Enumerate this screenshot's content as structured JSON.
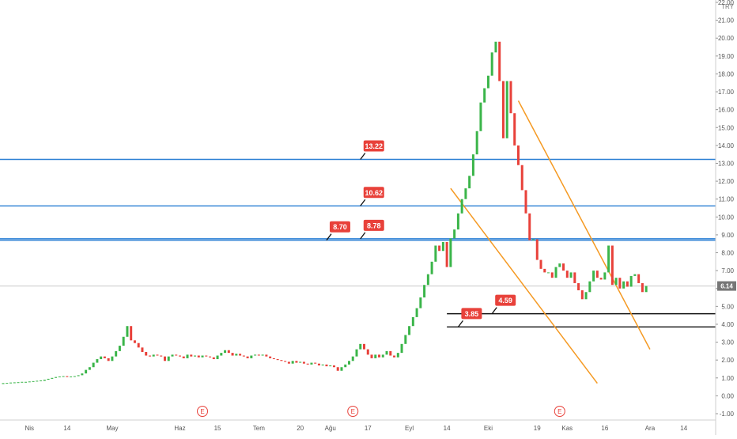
{
  "chart_data": {
    "type": "candlestick",
    "currency": "TRY",
    "y_axis": {
      "min": -1.0,
      "max": 22.0,
      "ticks": [
        "22.00",
        "21.00",
        "20.00",
        "19.00",
        "18.00",
        "17.00",
        "16.00",
        "15.00",
        "14.00",
        "13.00",
        "12.00",
        "11.00",
        "10.00",
        "9.00",
        "8.00",
        "7.00",
        "6.00",
        "5.00",
        "4.00",
        "3.00",
        "2.00",
        "1.00",
        "0.00",
        "-1.00"
      ],
      "tick_values": [
        22,
        21,
        20,
        19,
        18,
        17,
        16,
        15,
        14,
        13,
        12,
        11,
        10,
        9,
        8,
        7,
        6,
        5,
        4,
        3,
        2,
        1,
        0,
        -1
      ],
      "grid": false
    },
    "x_axis": {
      "labels": [
        {
          "text": "Nis",
          "d": 0
        },
        {
          "text": "14",
          "d": 10
        },
        {
          "text": "May",
          "d": 22
        },
        {
          "text": "Haz",
          "d": 40
        },
        {
          "text": "15",
          "d": 50
        },
        {
          "text": "Tem",
          "d": 61
        },
        {
          "text": "20",
          "d": 72
        },
        {
          "text": "Ağu",
          "d": 80
        },
        {
          "text": "17",
          "d": 90
        },
        {
          "text": "Eyl",
          "d": 101
        },
        {
          "text": "14",
          "d": 111
        },
        {
          "text": "Eki",
          "d": 122
        },
        {
          "text": "19",
          "d": 135
        },
        {
          "text": "Kas",
          "d": 143
        },
        {
          "text": "16",
          "d": 153
        },
        {
          "text": "Ara",
          "d": 165
        },
        {
          "text": "14",
          "d": 174
        }
      ],
      "range": [
        -7,
        181
      ]
    },
    "current_price": {
      "value": 6.14,
      "label": "6.14"
    },
    "markers": [
      {
        "text": "E",
        "d": 46
      },
      {
        "text": "E",
        "d": 86
      },
      {
        "text": "E",
        "d": 141
      }
    ],
    "horizontal_lines": [
      {
        "value": 13.22,
        "color": "#2a7fd4",
        "label": "13.22",
        "label_d": 88
      },
      {
        "value": 10.62,
        "color": "#2a7fd4",
        "label": "10.62",
        "label_d": 88
      },
      {
        "value": 8.7,
        "color": "#2a7fd4",
        "label": "8.70",
        "label_d": 79
      },
      {
        "value": 8.78,
        "color": "#2a7fd4",
        "label": "8.78",
        "label_d": 88
      },
      {
        "value": 4.59,
        "color": "#111111",
        "label": "4.59",
        "label_d": 123,
        "start_d": 111
      },
      {
        "value": 3.85,
        "color": "#111111",
        "label": "3.85",
        "label_d": 114,
        "start_d": 111
      }
    ],
    "trend_lines": [
      {
        "color": "#f59a23",
        "from": {
          "d": 112,
          "v": 11.6
        },
        "to": {
          "d": 151,
          "v": 0.7
        }
      },
      {
        "color": "#f59a23",
        "from": {
          "d": 130,
          "v": 16.5
        },
        "to": {
          "d": 165,
          "v": 2.6
        }
      }
    ],
    "candles": [
      [
        -7,
        0.66,
        0.71
      ],
      [
        -6,
        0.68,
        0.72
      ],
      [
        -5,
        0.7,
        0.74
      ],
      [
        -4,
        0.72,
        0.75
      ],
      [
        -3,
        0.72,
        0.76
      ],
      [
        -2,
        0.74,
        0.78
      ],
      [
        -1,
        0.75,
        0.78
      ],
      [
        0,
        0.76,
        0.8
      ],
      [
        1,
        0.78,
        0.82
      ],
      [
        2,
        0.8,
        0.84
      ],
      [
        3,
        0.82,
        0.86
      ],
      [
        4,
        0.84,
        0.9
      ],
      [
        5,
        0.9,
        0.95
      ],
      [
        6,
        0.95,
        1.0
      ],
      [
        7,
        1.0,
        1.05
      ],
      [
        8,
        1.05,
        1.08
      ],
      [
        9,
        1.08,
        1.1
      ],
      [
        10,
        1.1,
        1.05
      ],
      [
        11,
        1.05,
        1.08
      ],
      [
        12,
        1.08,
        1.1
      ],
      [
        13,
        1.1,
        1.15
      ],
      [
        14,
        1.15,
        1.25
      ],
      [
        15,
        1.25,
        1.45
      ],
      [
        16,
        1.45,
        1.6
      ],
      [
        17,
        1.6,
        1.85
      ],
      [
        18,
        1.85,
        2.05
      ],
      [
        19,
        2.05,
        2.2
      ],
      [
        20,
        2.2,
        2.1
      ],
      [
        21,
        2.1,
        1.95
      ],
      [
        22,
        1.95,
        2.2
      ],
      [
        23,
        2.2,
        2.5
      ],
      [
        24,
        2.5,
        2.8
      ],
      [
        25,
        2.8,
        3.3
      ],
      [
        26,
        3.3,
        3.9
      ],
      [
        27,
        3.9,
        3.1
      ],
      [
        28,
        3.1,
        2.95
      ],
      [
        29,
        2.95,
        2.7
      ],
      [
        30,
        2.7,
        2.45
      ],
      [
        31,
        2.45,
        2.25
      ],
      [
        32,
        2.25,
        2.2
      ],
      [
        33,
        2.2,
        2.3
      ],
      [
        34,
        2.3,
        2.25
      ],
      [
        35,
        2.25,
        2.2
      ],
      [
        36,
        2.2,
        1.95
      ],
      [
        37,
        1.95,
        2.2
      ],
      [
        38,
        2.2,
        2.3
      ],
      [
        39,
        2.3,
        2.25
      ],
      [
        40,
        2.25,
        2.2
      ],
      [
        41,
        2.2,
        2.1
      ],
      [
        42,
        2.1,
        2.3
      ],
      [
        43,
        2.3,
        2.2
      ],
      [
        44,
        2.2,
        2.25
      ],
      [
        45,
        2.25,
        2.15
      ],
      [
        46,
        2.15,
        2.25
      ],
      [
        47,
        2.25,
        2.2
      ],
      [
        48,
        2.2,
        2.15
      ],
      [
        49,
        2.15,
        2.05
      ],
      [
        50,
        2.05,
        2.25
      ],
      [
        51,
        2.25,
        2.4
      ],
      [
        52,
        2.4,
        2.55
      ],
      [
        53,
        2.55,
        2.4
      ],
      [
        54,
        2.4,
        2.25
      ],
      [
        55,
        2.25,
        2.35
      ],
      [
        56,
        2.35,
        2.25
      ],
      [
        57,
        2.25,
        2.2
      ],
      [
        58,
        2.2,
        2.1
      ],
      [
        59,
        2.1,
        2.25
      ],
      [
        60,
        2.25,
        2.3
      ],
      [
        61,
        2.3,
        2.25
      ],
      [
        62,
        2.25,
        2.3
      ],
      [
        63,
        2.3,
        2.2
      ],
      [
        64,
        2.2,
        2.1
      ],
      [
        65,
        2.1,
        2.05
      ],
      [
        66,
        2.05,
        2.0
      ],
      [
        67,
        2.0,
        1.95
      ],
      [
        68,
        1.95,
        1.9
      ],
      [
        69,
        1.9,
        1.8
      ],
      [
        70,
        1.8,
        1.95
      ],
      [
        71,
        1.95,
        1.85
      ],
      [
        72,
        1.85,
        1.9
      ],
      [
        73,
        1.9,
        1.8
      ],
      [
        74,
        1.8,
        1.75
      ],
      [
        75,
        1.75,
        1.85
      ],
      [
        76,
        1.85,
        1.8
      ],
      [
        77,
        1.8,
        1.7
      ],
      [
        78,
        1.7,
        1.75
      ],
      [
        79,
        1.75,
        1.65
      ],
      [
        80,
        1.65,
        1.7
      ],
      [
        81,
        1.7,
        1.6
      ],
      [
        82,
        1.6,
        1.4
      ],
      [
        83,
        1.4,
        1.6
      ],
      [
        84,
        1.6,
        1.75
      ],
      [
        85,
        1.75,
        1.95
      ],
      [
        86,
        1.95,
        2.2
      ],
      [
        87,
        2.2,
        2.6
      ],
      [
        88,
        2.6,
        2.9
      ],
      [
        89,
        2.9,
        2.6
      ],
      [
        90,
        2.6,
        2.3
      ],
      [
        91,
        2.3,
        2.1
      ],
      [
        92,
        2.1,
        2.3
      ],
      [
        93,
        2.3,
        2.15
      ],
      [
        94,
        2.15,
        2.3
      ],
      [
        95,
        2.3,
        2.5
      ],
      [
        96,
        2.5,
        2.25
      ],
      [
        97,
        2.25,
        2.15
      ],
      [
        98,
        2.15,
        2.4
      ],
      [
        99,
        2.4,
        2.9
      ],
      [
        100,
        2.9,
        3.4
      ],
      [
        101,
        3.4,
        3.9
      ],
      [
        102,
        3.9,
        4.4
      ],
      [
        103,
        4.4,
        4.9
      ],
      [
        104,
        4.9,
        5.5
      ],
      [
        105,
        5.5,
        6.2
      ],
      [
        106,
        6.2,
        6.8
      ],
      [
        107,
        6.8,
        7.5
      ],
      [
        108,
        7.5,
        8.4
      ],
      [
        109,
        8.4,
        8.1
      ],
      [
        110,
        8.1,
        8.6
      ],
      [
        111,
        8.6,
        7.2
      ],
      [
        112,
        7.2,
        8.8
      ],
      [
        113,
        8.8,
        9.3
      ],
      [
        114,
        9.3,
        10.2
      ],
      [
        115,
        10.2,
        11.0
      ],
      [
        116,
        11.0,
        11.6
      ],
      [
        117,
        11.6,
        12.3
      ],
      [
        118,
        12.3,
        13.5
      ],
      [
        119,
        13.5,
        14.8
      ],
      [
        120,
        14.8,
        16.4
      ],
      [
        121,
        16.4,
        17.2
      ],
      [
        122,
        17.2,
        17.9
      ],
      [
        123,
        17.9,
        19.2
      ],
      [
        124,
        19.2,
        19.8
      ],
      [
        125,
        19.8,
        17.6
      ],
      [
        126,
        17.6,
        14.4
      ],
      [
        127,
        14.4,
        17.6
      ],
      [
        128,
        17.6,
        15.8
      ],
      [
        129,
        15.8,
        14.0
      ],
      [
        130,
        14.0,
        12.9
      ],
      [
        131,
        12.9,
        11.5
      ],
      [
        132,
        11.5,
        10.2
      ],
      [
        133,
        10.2,
        8.7
      ],
      [
        134,
        8.7,
        8.75
      ],
      [
        135,
        8.75,
        7.6
      ],
      [
        136,
        7.6,
        7.1
      ],
      [
        137,
        7.1,
        6.9
      ],
      [
        138,
        6.9,
        6.9
      ],
      [
        139,
        6.9,
        6.6
      ],
      [
        140,
        6.6,
        7.2
      ],
      [
        141,
        7.2,
        7.4
      ],
      [
        142,
        7.4,
        7.0
      ],
      [
        143,
        7.0,
        6.6
      ],
      [
        144,
        6.6,
        6.9
      ],
      [
        145,
        6.9,
        6.3
      ],
      [
        146,
        6.3,
        5.9
      ],
      [
        147,
        5.9,
        5.4
      ],
      [
        148,
        5.4,
        5.8
      ],
      [
        149,
        5.8,
        6.4
      ],
      [
        150,
        6.4,
        7.0
      ],
      [
        151,
        7.0,
        6.6
      ],
      [
        152,
        6.6,
        6.5
      ],
      [
        153,
        6.5,
        6.9
      ],
      [
        154,
        6.9,
        8.4
      ],
      [
        155,
        8.4,
        6.2
      ],
      [
        156,
        6.2,
        6.6
      ],
      [
        157,
        6.6,
        6.0
      ],
      [
        158,
        6.0,
        6.4
      ],
      [
        159,
        6.4,
        6.1
      ],
      [
        160,
        6.1,
        6.7
      ],
      [
        161,
        6.7,
        6.8
      ],
      [
        162,
        6.8,
        6.3
      ],
      [
        163,
        6.3,
        5.8
      ],
      [
        164,
        5.8,
        6.14
      ]
    ]
  }
}
